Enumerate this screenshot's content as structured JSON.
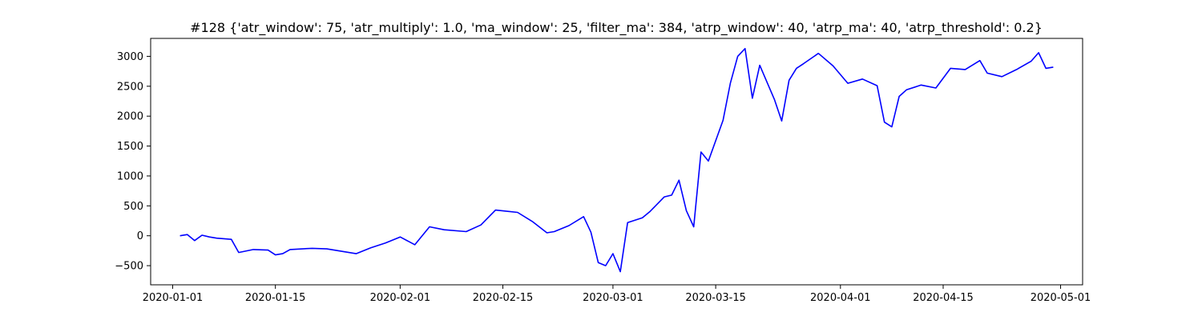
{
  "chart_data": {
    "type": "line",
    "title": "#128 {'atr_window': 75, 'atr_multiply': 1.0, 'ma_window': 25, 'filter_ma': 384, 'atrp_window': 40, 'atrp_ma': 40, 'atrp_threshold': 0.2}",
    "xlabel": "",
    "ylabel": "",
    "x_axis": "date",
    "xlim": [
      "2019-12-29",
      "2020-05-04"
    ],
    "ylim": [
      -820,
      3300
    ],
    "x_ticks": [
      "2020-01-01",
      "2020-01-15",
      "2020-02-01",
      "2020-02-15",
      "2020-03-01",
      "2020-03-15",
      "2020-04-01",
      "2020-04-15",
      "2020-05-01"
    ],
    "y_ticks": [
      -500,
      0,
      500,
      1000,
      1500,
      2000,
      2500,
      3000
    ],
    "grid": false,
    "legend": "none",
    "line_color": "#0000ff",
    "series": [
      {
        "x": [
          "2020-01-02",
          "2020-01-03",
          "2020-01-04",
          "2020-01-05",
          "2020-01-06",
          "2020-01-07",
          "2020-01-08",
          "2020-01-09",
          "2020-01-10",
          "2020-01-12",
          "2020-01-14",
          "2020-01-15",
          "2020-01-16",
          "2020-01-17",
          "2020-01-20",
          "2020-01-22",
          "2020-01-24",
          "2020-01-26",
          "2020-01-28",
          "2020-01-30",
          "2020-02-01",
          "2020-02-03",
          "2020-02-05",
          "2020-02-07",
          "2020-02-10",
          "2020-02-12",
          "2020-02-14",
          "2020-02-17",
          "2020-02-19",
          "2020-02-21",
          "2020-02-22",
          "2020-02-24",
          "2020-02-26",
          "2020-02-27",
          "2020-02-28",
          "2020-02-29",
          "2020-03-01",
          "2020-03-02",
          "2020-03-03",
          "2020-03-05",
          "2020-03-06",
          "2020-03-08",
          "2020-03-09",
          "2020-03-10",
          "2020-03-11",
          "2020-03-12",
          "2020-03-13",
          "2020-03-14",
          "2020-03-16",
          "2020-03-17",
          "2020-03-18",
          "2020-03-19",
          "2020-03-20",
          "2020-03-21",
          "2020-03-23",
          "2020-03-24",
          "2020-03-25",
          "2020-03-26",
          "2020-03-27",
          "2020-03-29",
          "2020-03-31",
          "2020-04-02",
          "2020-04-04",
          "2020-04-06",
          "2020-04-07",
          "2020-04-08",
          "2020-04-09",
          "2020-04-10",
          "2020-04-12",
          "2020-04-14",
          "2020-04-16",
          "2020-04-18",
          "2020-04-20",
          "2020-04-21",
          "2020-04-23",
          "2020-04-25",
          "2020-04-27",
          "2020-04-28",
          "2020-04-29",
          "2020-04-30"
        ],
        "values": [
          0,
          20,
          -80,
          10,
          -20,
          -40,
          -50,
          -60,
          -280,
          -230,
          -240,
          -320,
          -300,
          -230,
          -210,
          -220,
          -260,
          -300,
          -200,
          -120,
          -20,
          -150,
          150,
          100,
          70,
          180,
          430,
          390,
          240,
          50,
          70,
          170,
          320,
          60,
          -450,
          -500,
          -300,
          -600,
          220,
          300,
          400,
          650,
          680,
          930,
          420,
          150,
          1400,
          1250,
          1930,
          2550,
          3000,
          3130,
          2300,
          2850,
          2280,
          1920,
          2600,
          2800,
          2880,
          3050,
          2840,
          2550,
          2620,
          2510,
          1900,
          1820,
          2330,
          2440,
          2520,
          2470,
          2800,
          2780,
          2930,
          2720,
          2660,
          2780,
          2920,
          3060,
          2800,
          2820
        ]
      }
    ]
  }
}
